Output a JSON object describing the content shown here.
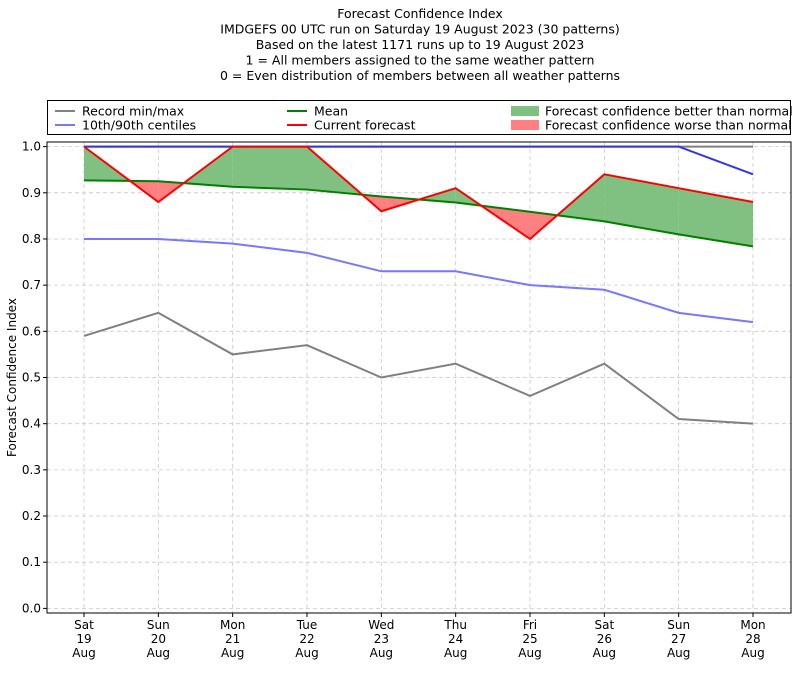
{
  "chart_data": {
    "type": "line",
    "title_lines": [
      "Forecast Confidence Index",
      "IMDGEFS 00 UTC run on Saturday 19 August 2023 (30 patterns)",
      "Based on the latest 1171 runs up to 19 August 2023",
      "1 = All members assigned to the same weather pattern",
      "0 = Even distribution of members between all weather patterns"
    ],
    "ylabel": "Forecast Confidence Index",
    "xlabel": "",
    "ylim": [
      -0.01,
      1.01
    ],
    "yticks": [
      "0.0",
      "0.1",
      "0.2",
      "0.3",
      "0.4",
      "0.5",
      "0.6",
      "0.7",
      "0.8",
      "0.9",
      "1.0"
    ],
    "grid": true,
    "legend_placement": "top",
    "categories": [
      [
        "Sat",
        "19",
        "Aug"
      ],
      [
        "Sun",
        "20",
        "Aug"
      ],
      [
        "Mon",
        "21",
        "Aug"
      ],
      [
        "Tue",
        "22",
        "Aug"
      ],
      [
        "Wed",
        "23",
        "Aug"
      ],
      [
        "Thu",
        "24",
        "Aug"
      ],
      [
        "Fri",
        "25",
        "Aug"
      ],
      [
        "Sat",
        "26",
        "Aug"
      ],
      [
        "Sun",
        "27",
        "Aug"
      ],
      [
        "Mon",
        "28",
        "Aug"
      ]
    ],
    "series": [
      {
        "name": "Record min/max",
        "key": "record_min",
        "color": "#808080",
        "values": [
          0.59,
          0.64,
          0.55,
          0.57,
          0.5,
          0.53,
          0.46,
          0.53,
          0.41,
          0.4
        ]
      },
      {
        "name": "",
        "key": "record_max",
        "color": "#808080",
        "values": [
          1.0,
          1.0,
          1.0,
          1.0,
          1.0,
          1.0,
          1.0,
          1.0,
          1.0,
          1.0
        ]
      },
      {
        "name": "10th/90th centiles",
        "key": "p10",
        "color": "#7777ff",
        "values": [
          0.8,
          0.8,
          0.79,
          0.77,
          0.73,
          0.73,
          0.7,
          0.69,
          0.64,
          0.62
        ]
      },
      {
        "name": "",
        "key": "p90",
        "color": "#3333ee",
        "values": [
          1.0,
          1.0,
          1.0,
          1.0,
          1.0,
          1.0,
          1.0,
          1.0,
          1.0,
          0.94
        ]
      },
      {
        "name": "Mean",
        "key": "mean",
        "color": "#007f00",
        "values": [
          0.927,
          0.925,
          0.913,
          0.907,
          0.892,
          0.879,
          0.859,
          0.838,
          0.81,
          0.784
        ]
      },
      {
        "name": "Current forecast",
        "key": "current",
        "color": "#ff0000",
        "values": [
          1.0,
          0.88,
          1.0,
          1.0,
          0.86,
          0.91,
          0.8,
          0.94,
          0.91,
          0.88
        ]
      }
    ],
    "fill_legend": [
      {
        "name": "Forecast confidence better than normal",
        "color": "#80c080"
      },
      {
        "name": "Forecast confidence worse than normal",
        "color": "#ff8080"
      }
    ]
  }
}
